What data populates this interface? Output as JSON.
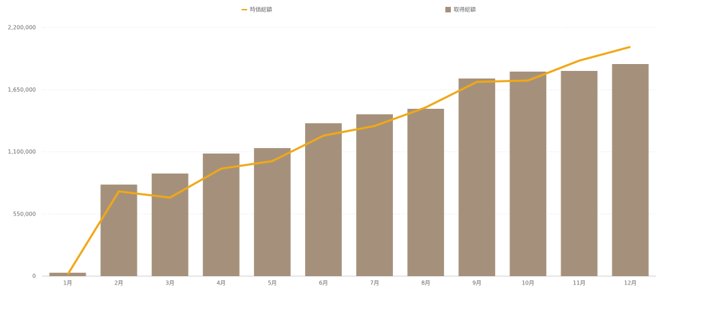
{
  "chart_data": {
    "type": "bar",
    "categories": [
      "1月",
      "2月",
      "3月",
      "4月",
      "5月",
      "6月",
      "7月",
      "8月",
      "9月",
      "10月",
      "11月",
      "12月"
    ],
    "series": [
      {
        "name": "時価総額",
        "type": "line",
        "color": "#f0a817",
        "values": [
          15000,
          750000,
          695000,
          951000,
          1018000,
          1243000,
          1329000,
          1493000,
          1719000,
          1731000,
          1907000,
          2029000
        ]
      },
      {
        "name": "取得総額",
        "type": "bar",
        "color": "#a5917b",
        "values": [
          30000,
          810000,
          908000,
          1085000,
          1133000,
          1353000,
          1432000,
          1481000,
          1749000,
          1810000,
          1816000,
          1877000
        ]
      }
    ],
    "ylim": [
      0,
      2200000
    ],
    "yticks": [
      0,
      {
        "value": 550000,
        "label": "550,000"
      },
      {
        "value": 1100000,
        "label": "1,100,000"
      },
      {
        "value": 1650000,
        "label": "1,650,000"
      },
      {
        "value": 2200000,
        "label": "2,200,000"
      }
    ],
    "grid": true,
    "legend": "top"
  }
}
